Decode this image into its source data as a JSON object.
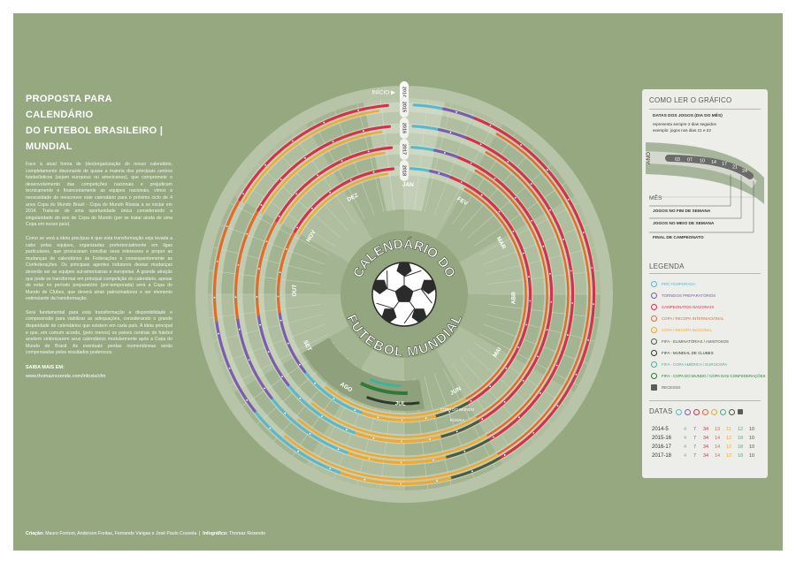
{
  "intro": {
    "title_line1": "PROPOSTA PARA CALENDÁRIO",
    "title_line2": "DO FUTEBOL BRASILEIRO | MUNDIAL",
    "paragraphs": [
      "Face à atual forma de (des)organização do nosso calendário, completamente dissonante de quase a maioria dos principais centros futebolísticos (sejam europeus ou americanos), que compromete o desenvolvimento das competições nacionais e prejudicam tecnicamente e financeiramente as equipes nacionais, vimos a necessidade de reescrever este calendário para o próximo ciclo de 4 anos Copa do Mundo Brasil - Copa do Mundo Rússia a se iniciar em 2014. Trata-se de uma oportunidade única considerando a singularidade do ano de Copa do Mundo (por se tratar ainda de uma Copa em nosso país).",
      "Como se verá a ideia precípua é que esta transformação seja levada a cabo pelas equipes, organizadas preferencialmente em ligas particulares, que procuraram conciliar seus interesses e propor as mudanças de calendários às Federações e consequentemente as Confederações. Os principais agentes indutores destas mudanças deverão ser as equipes sul-americanas e europeias. A grande atração que pode se transformar em principal competição do calendário, apesar de estar no período preparatório (pré-temporada) será a Copa do Mundo de Clubes, que deverá atrair patrocinadores e ser elemento estimulante da transformação.",
      "Será fundamental para esta transformação a disponibilidade e compreensão para viabilizar as adequações, considerando o grande disparidade de calendários que existem em cada país. A ideia principal e que, em comum acordo, (pelo menos) os países centrais do futebol aceitem sintonizarem seus calendários modularmente após a Copa do Mundo do Brasil. As eventuais perdas momentâneas serão compensadas pelos resultados poderosos."
    ],
    "saiba_label": "SAIBA MAIS EM:",
    "url": "www.thomazrezende.com/infoxis/cfm"
  },
  "credits": {
    "criacao_label": "Criação:",
    "criacao_names": "Mauro Fontoni, Anderson Freitas, Fernando Vieigas e José Paulo Couvela",
    "infografico_label": "Infográfico:",
    "infografico_name": "Thomaz Rezende"
  },
  "wheel": {
    "center_top": "CALENDÁRIO DO",
    "center_bottom": "FUTEBOL MUNDIAL",
    "inicio": "INÍCIO ▶",
    "years": [
      "2014",
      "2015",
      "2016",
      "2017",
      "2018"
    ],
    "months": [
      "JAN",
      "FEV",
      "MAR",
      "ABR",
      "MAI",
      "JUN",
      "JUL",
      "AGO",
      "SET",
      "OUT",
      "NOV",
      "DEZ"
    ],
    "inner_labels": [
      "COPA DO MUNDO",
      "RÚSSIA"
    ],
    "colors": {
      "pre": "#5ab8cc",
      "torneios": "#7b5cb0",
      "nacionais": "#d6304a",
      "internacional": "#e46a2a",
      "recopa": "#f0a830",
      "eliminatorias": "#4d5a40",
      "clubes": "#2b3a2a",
      "america": "#3fb29a",
      "copa": "#2f7a3a",
      "recesso": "#5c5c5c"
    }
  },
  "how_to": {
    "title": "COMO LER O GRÁFICO",
    "datas_title": "DATAS DOS JOGOS (DIA DO MÊS)",
    "datas_note1": "representa sempre 2 dias seguidos",
    "datas_note2": "exemplo: jogos nos dias 21 e 22",
    "ano": "ANO",
    "example_days": [
      "03",
      "07",
      "10",
      "14",
      "17",
      "21",
      "24"
    ],
    "mes": "MÊS",
    "fim_semana": "JOGOS NO FIM DE SEMANA",
    "meio_semana": "JOGOS NO MEIO DE SEMANA",
    "final": "FINAL DE CAMPEONATO"
  },
  "legend": {
    "title": "LEGENDA",
    "items": [
      {
        "label": "PRÉ-TEMPORADA",
        "color": "#5ab8cc"
      },
      {
        "label": "TORNEIOS PREPARATÓRIOS",
        "color": "#7b5cb0"
      },
      {
        "label": "CAMPEONATOS NACIONAIS",
        "color": "#d6304a"
      },
      {
        "label": "COPA / RECOPA INTERNACIONAL",
        "color": "#e46a2a"
      },
      {
        "label": "COPA / RECOPA NACIONAL",
        "color": "#f0a830"
      },
      {
        "label": "FIFA - ELIMINATÓRIAS / AMISTOSOS",
        "color": "#4d5a40"
      },
      {
        "label": "FIFA - MUNDIAL DE CLUBES",
        "color": "#2b3a2a"
      },
      {
        "label": "FIFA - COPA AMÉRICA / EUROCOPA",
        "color": "#3fb29a"
      },
      {
        "label": "FIFA - COPA DO MUNDO / COPA DAS CONFEDERAÇÕES",
        "color": "#2f7a3a"
      },
      {
        "label": "RECESSO",
        "color": "#5c5c5c"
      }
    ]
  },
  "dates": {
    "title": "DATAS",
    "rows": [
      {
        "season": "2014-5",
        "values": [
          "4",
          "7",
          "34",
          "13",
          "11",
          "12",
          "10"
        ]
      },
      {
        "season": "2015-16",
        "values": [
          "4",
          "7",
          "34",
          "14",
          "12",
          "18",
          "10"
        ]
      },
      {
        "season": "2016-17",
        "values": [
          "4",
          "7",
          "34",
          "14",
          "12",
          "18",
          "10"
        ]
      },
      {
        "season": "2017-18",
        "values": [
          "4",
          "7",
          "34",
          "14",
          "12",
          "18",
          "10"
        ]
      }
    ],
    "value_colors": [
      "#5ab8cc",
      "#7b5cb0",
      "#d6304a",
      "#e46a2a",
      "#f0a830",
      "#3fb29a",
      "#4d5a40"
    ]
  }
}
